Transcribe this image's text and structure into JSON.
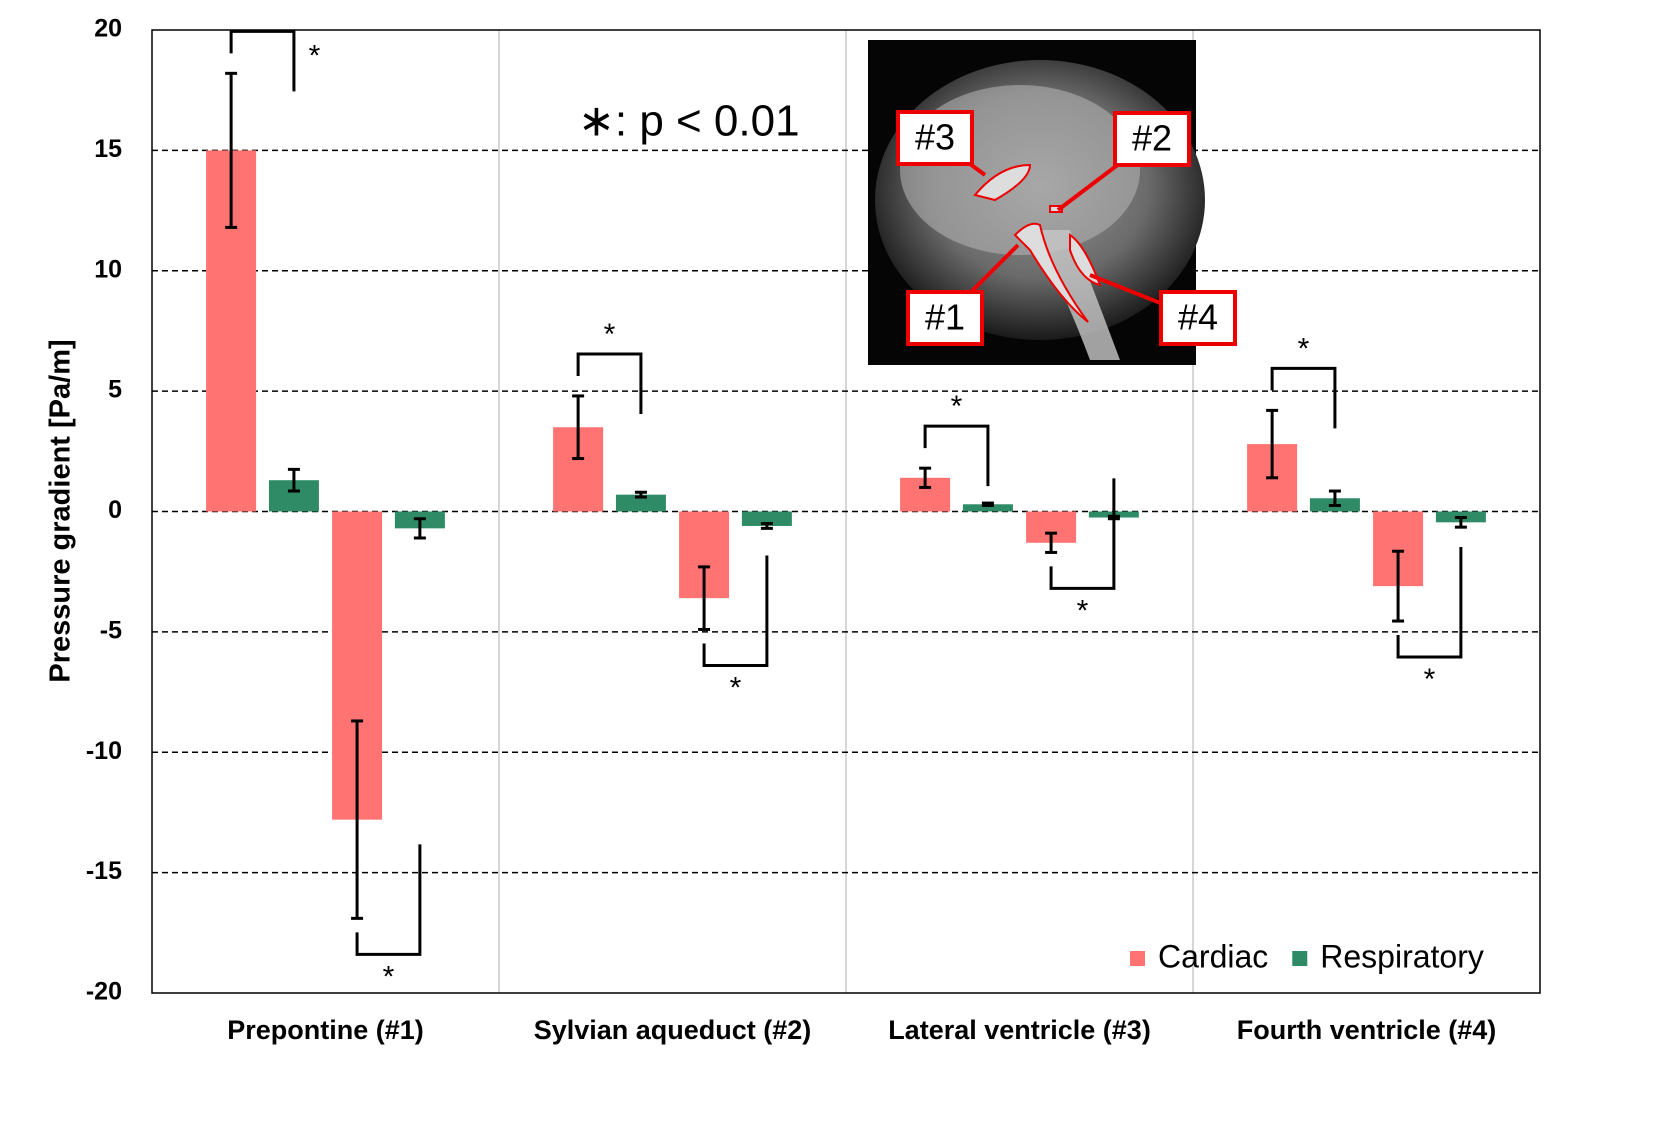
{
  "chart_data": {
    "type": "bar",
    "ylabel": "Pressure gradient [Pa/m]",
    "categories": [
      "Prepontine (#1)",
      "Sylvian aqueduct (#2)",
      "Lateral ventricle (#3)",
      "Fourth ventricle (#4)"
    ],
    "series": [
      {
        "name": "Cardiac",
        "color": "#ff7373",
        "values": [
          [
            15.0,
            -12.8
          ],
          [
            3.5,
            -3.6
          ],
          [
            1.4,
            -1.3
          ],
          [
            2.8,
            -3.1
          ]
        ],
        "errors": [
          [
            3.2,
            4.1
          ],
          [
            1.3,
            1.3
          ],
          [
            0.4,
            0.4
          ],
          [
            1.4,
            1.45
          ]
        ]
      },
      {
        "name": "Respiratory",
        "color": "#2e8b66",
        "values": [
          [
            1.3,
            -0.7
          ],
          [
            0.7,
            -0.6
          ],
          [
            0.3,
            -0.25
          ],
          [
            0.55,
            -0.45
          ]
        ],
        "errors": [
          [
            0.45,
            0.4
          ],
          [
            0.1,
            0.1
          ],
          [
            0.05,
            0.05
          ],
          [
            0.3,
            0.2
          ]
        ]
      }
    ],
    "ylim": [
      -20,
      20
    ],
    "yticks": [
      -20,
      -15,
      -10,
      -5,
      0,
      5,
      10,
      15,
      20
    ],
    "grid": true,
    "legend": "lower right",
    "annotation": "∗: p < 0.01",
    "significance": [
      [
        "*",
        "*"
      ],
      [
        "*",
        "*"
      ],
      [
        "*",
        "*"
      ],
      [
        "*",
        "*"
      ]
    ],
    "inset_labels": [
      "#1",
      "#2",
      "#3",
      "#4"
    ]
  }
}
